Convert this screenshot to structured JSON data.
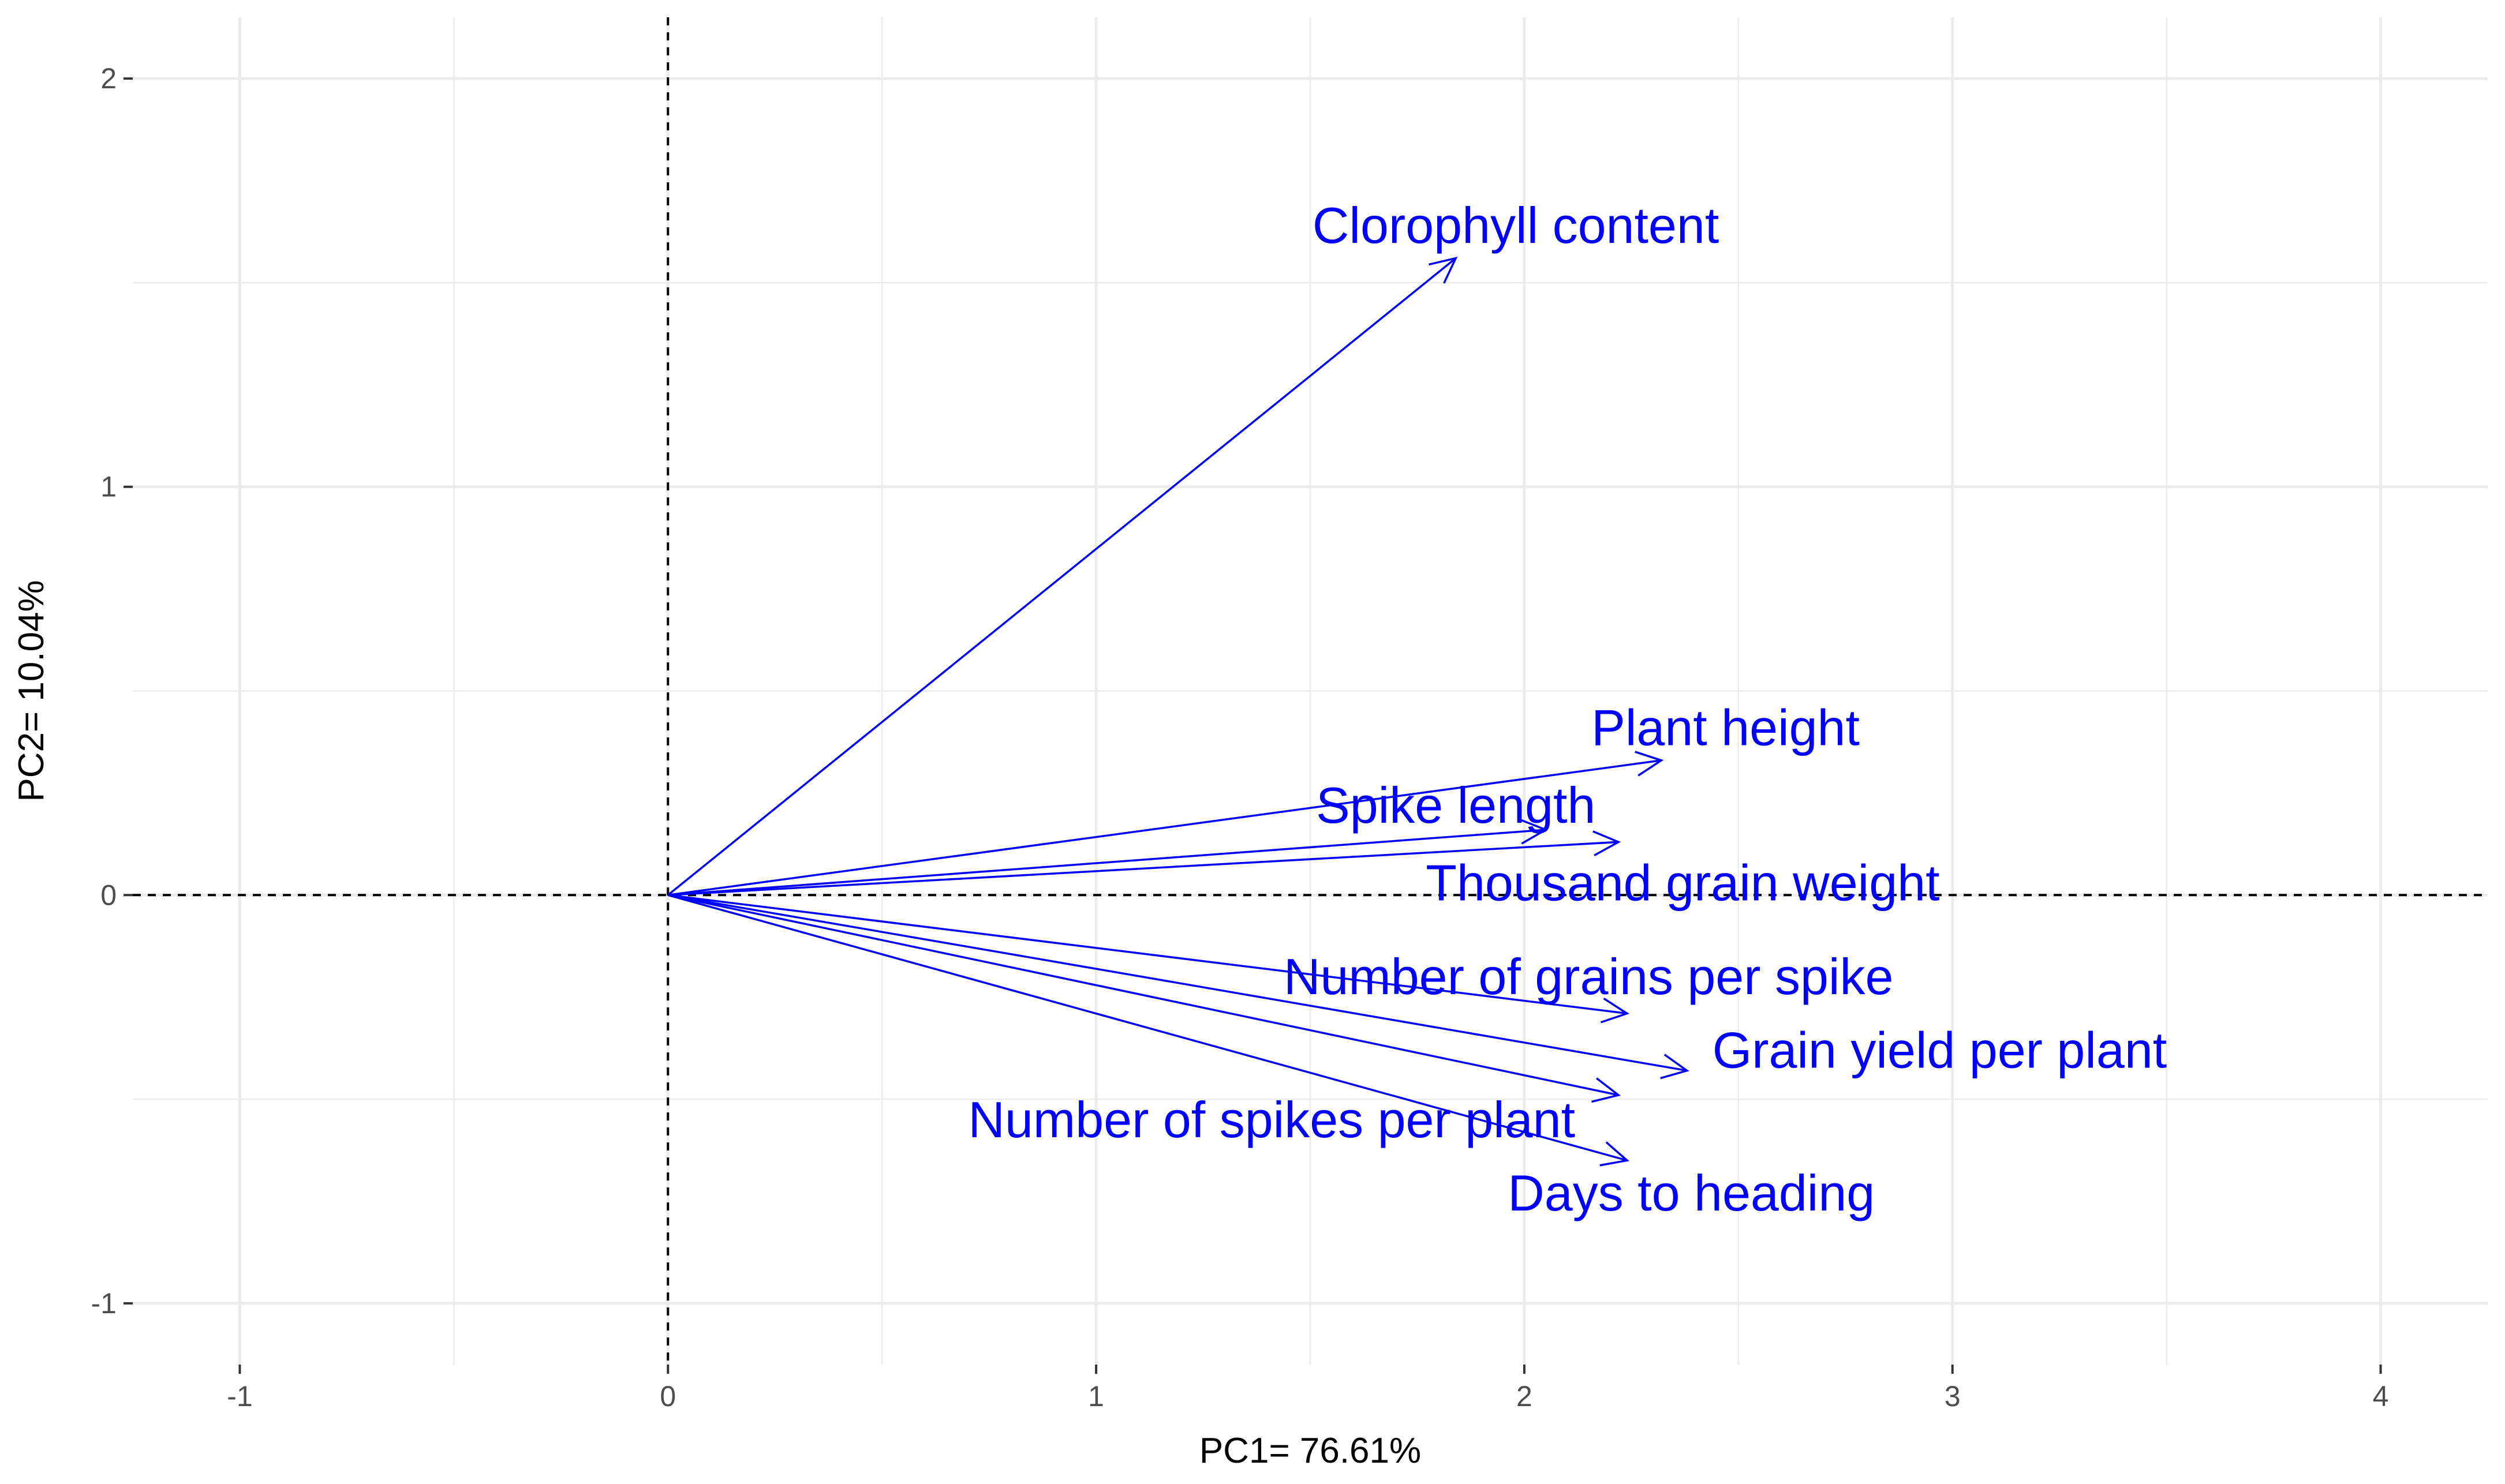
{
  "chart_data": {
    "type": "biplot",
    "title": "",
    "xlabel": "PC1= 76.61%",
    "ylabel": "PC2= 10.04%",
    "xlim": [
      -1.25,
      4.25
    ],
    "ylim": [
      -1.15,
      2.15
    ],
    "x_ticks": [
      -1,
      0,
      1,
      2,
      3,
      4
    ],
    "y_ticks": [
      -1,
      0,
      1,
      2
    ],
    "grid": true,
    "reference_lines": {
      "x": 0,
      "y": 0,
      "style": "dashed"
    },
    "arrow_color": "#0000FF",
    "grid_color": "#EBEBEB",
    "vectors": [
      {
        "name": "Clorophyll content",
        "x": 1.84,
        "y": 1.56,
        "label_x": 1.98,
        "label_y": 1.63
      },
      {
        "name": "Plant height",
        "x": 2.32,
        "y": 0.33,
        "label_x": 2.47,
        "label_y": 0.4
      },
      {
        "name": "Spike length",
        "x": 2.05,
        "y": 0.16,
        "label_x": 1.84,
        "label_y": 0.21
      },
      {
        "name": "Thousand grain weight",
        "x": 2.22,
        "y": 0.13,
        "label_x": 2.37,
        "label_y": 0.02
      },
      {
        "name": "Number of grains per spike",
        "x": 2.24,
        "y": -0.29,
        "label_x": 2.15,
        "label_y": -0.21
      },
      {
        "name": "Grain yield per plant",
        "x": 2.38,
        "y": -0.43,
        "label_x": 2.97,
        "label_y": -0.39
      },
      {
        "name": "Number of spikes per plant",
        "x": 2.22,
        "y": -0.49,
        "label_x": 1.41,
        "label_y": -0.56
      },
      {
        "name": "Days to heading",
        "x": 2.24,
        "y": -0.65,
        "label_x": 2.39,
        "label_y": -0.74
      }
    ]
  }
}
